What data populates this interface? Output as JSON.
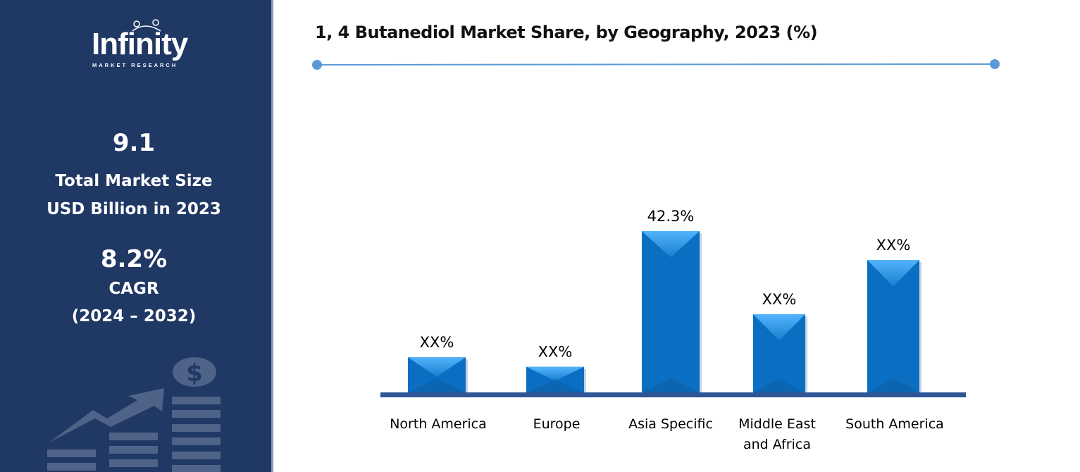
{
  "sidebar": {
    "logo": {
      "name": "Infinity",
      "sub": "MARKET RESEARCH"
    },
    "market_size": "9.1",
    "market_size_label_1": "Total Market Size",
    "market_size_label_2": "USD Billion in 2023",
    "cagr": "8.2%",
    "cagr_label": "CAGR",
    "cagr_period": "(2024 – 2032)"
  },
  "colors": {
    "sidebar": "#203864",
    "bar": "#0a6fc2",
    "bar_highlight": "#3fa9f5",
    "axis": "#2f5597",
    "accent_line": "#5b9bd5"
  },
  "chart_data": {
    "type": "bar",
    "title": "1, 4 Butanediol Market Share, by Geography, 2023 (%)",
    "categories": [
      [
        "North America"
      ],
      [
        "Europe"
      ],
      [
        "Asia Specific"
      ],
      [
        "Middle East",
        "and Africa"
      ],
      [
        "South America"
      ]
    ],
    "values": [
      9.2,
      6.7,
      42.3,
      20.5,
      34.7
    ],
    "data_labels": [
      "XX%",
      "XX%",
      "42.3%",
      "XX%",
      "XX%"
    ],
    "ylim": [
      0,
      42.3
    ],
    "grid": false
  }
}
